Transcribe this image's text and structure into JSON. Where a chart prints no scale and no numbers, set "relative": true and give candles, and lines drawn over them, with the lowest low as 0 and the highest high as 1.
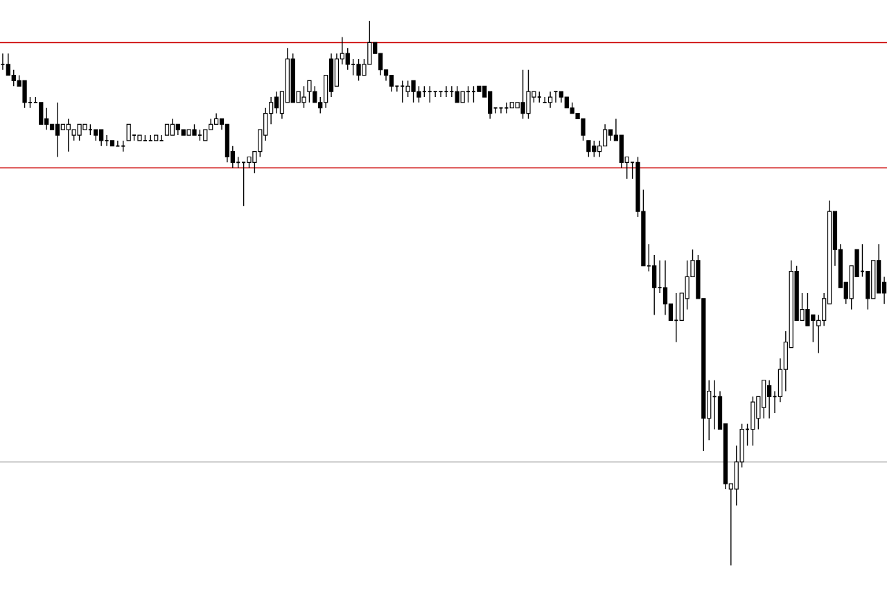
{
  "chart_data": {
    "type": "candlestick",
    "relative": true,
    "color": "#000000",
    "categories": [
      null,
      null,
      null,
      null,
      null,
      null,
      null,
      null,
      null,
      null,
      null,
      null,
      null,
      null,
      null,
      null,
      null,
      null,
      null,
      null,
      null,
      null,
      null,
      null,
      null,
      null,
      null,
      null,
      null,
      null,
      null,
      null,
      null,
      null,
      null,
      null,
      null,
      null,
      null,
      null,
      null,
      null,
      null,
      null,
      null,
      null,
      null,
      null,
      null,
      null,
      null,
      null,
      null,
      null,
      null,
      null,
      null,
      null,
      null,
      null,
      null,
      null,
      null,
      null,
      null,
      null,
      null,
      null,
      null,
      null,
      null,
      null,
      null,
      null,
      null,
      null,
      null,
      null,
      null,
      null,
      null,
      null,
      null,
      null,
      null,
      null,
      null,
      null,
      null,
      null,
      null,
      null,
      null,
      null,
      null,
      null,
      null,
      null,
      null,
      null,
      null,
      null,
      null,
      null,
      null,
      null,
      null,
      null,
      null,
      null,
      null,
      null,
      null,
      null,
      null,
      null,
      null,
      null,
      null,
      null,
      null,
      null,
      null,
      null,
      null,
      null,
      null,
      null,
      null,
      null,
      null,
      null,
      null,
      null,
      null,
      null,
      null,
      null,
      null,
      null,
      null,
      null,
      null,
      null,
      null,
      null,
      null,
      null,
      null,
      null,
      null,
      null,
      null,
      null,
      null,
      null,
      null,
      null,
      null,
      null,
      null,
      null
    ],
    "ohlc": [
      [
        0.92,
        0.94,
        0.91,
        0.92
      ],
      [
        0.92,
        0.94,
        0.9,
        0.9
      ],
      [
        0.9,
        0.91,
        0.88,
        0.89
      ],
      [
        0.89,
        0.9,
        0.88,
        0.88
      ],
      [
        0.89,
        0.89,
        0.84,
        0.85
      ],
      [
        0.85,
        0.86,
        0.84,
        0.85
      ],
      [
        0.85,
        0.86,
        0.85,
        0.85
      ],
      [
        0.85,
        0.85,
        0.81,
        0.81
      ],
      [
        0.82,
        0.84,
        0.8,
        0.81
      ],
      [
        0.81,
        0.81,
        0.8,
        0.8
      ],
      [
        0.81,
        0.85,
        0.75,
        0.79
      ],
      [
        0.8,
        0.81,
        0.8,
        0.81
      ],
      [
        0.8,
        0.82,
        0.76,
        0.81
      ],
      [
        0.79,
        0.8,
        0.78,
        0.8
      ],
      [
        0.79,
        0.81,
        0.78,
        0.81
      ],
      [
        0.8,
        0.81,
        0.8,
        0.81
      ],
      [
        0.8,
        0.81,
        0.79,
        0.8
      ],
      [
        0.8,
        0.8,
        0.78,
        0.79
      ],
      [
        0.8,
        0.8,
        0.77,
        0.78
      ],
      [
        0.78,
        0.79,
        0.77,
        0.78
      ],
      [
        0.78,
        0.78,
        0.77,
        0.77
      ],
      [
        0.77,
        0.78,
        0.77,
        0.77
      ],
      [
        0.77,
        0.78,
        0.76,
        0.77
      ],
      [
        0.78,
        0.81,
        0.78,
        0.81
      ],
      [
        0.79,
        0.79,
        0.78,
        0.79
      ],
      [
        0.78,
        0.79,
        0.78,
        0.79
      ],
      [
        0.78,
        0.79,
        0.78,
        0.78
      ],
      [
        0.78,
        0.79,
        0.78,
        0.78
      ],
      [
        0.78,
        0.79,
        0.78,
        0.79
      ],
      [
        0.78,
        0.79,
        0.78,
        0.78
      ],
      [
        0.79,
        0.81,
        0.79,
        0.81
      ],
      [
        0.79,
        0.82,
        0.79,
        0.81
      ],
      [
        0.81,
        0.81,
        0.79,
        0.8
      ],
      [
        0.8,
        0.8,
        0.79,
        0.79
      ],
      [
        0.79,
        0.8,
        0.79,
        0.8
      ],
      [
        0.8,
        0.81,
        0.79,
        0.79
      ],
      [
        0.79,
        0.8,
        0.78,
        0.79
      ],
      [
        0.78,
        0.8,
        0.78,
        0.8
      ],
      [
        0.8,
        0.82,
        0.8,
        0.81
      ],
      [
        0.81,
        0.83,
        0.81,
        0.82
      ],
      [
        0.82,
        0.82,
        0.8,
        0.81
      ],
      [
        0.81,
        0.81,
        0.74,
        0.75
      ],
      [
        0.76,
        0.77,
        0.73,
        0.74
      ],
      [
        0.74,
        0.75,
        0.73,
        0.74
      ],
      [
        0.74,
        0.74,
        0.66,
        0.74
      ],
      [
        0.74,
        0.75,
        0.73,
        0.75
      ],
      [
        0.74,
        0.76,
        0.72,
        0.76
      ],
      [
        0.76,
        0.8,
        0.75,
        0.8
      ],
      [
        0.79,
        0.84,
        0.78,
        0.83
      ],
      [
        0.83,
        0.86,
        0.81,
        0.85
      ],
      [
        0.86,
        0.87,
        0.83,
        0.84
      ],
      [
        0.83,
        0.87,
        0.82,
        0.87
      ],
      [
        0.85,
        0.95,
        0.85,
        0.93
      ],
      [
        0.93,
        0.94,
        0.85,
        0.85
      ],
      [
        0.85,
        0.87,
        0.85,
        0.87
      ],
      [
        0.85,
        0.88,
        0.84,
        0.86
      ],
      [
        0.87,
        0.89,
        0.85,
        0.89
      ],
      [
        0.87,
        0.88,
        0.85,
        0.85
      ],
      [
        0.85,
        0.86,
        0.83,
        0.84
      ],
      [
        0.85,
        0.9,
        0.84,
        0.9
      ],
      [
        0.93,
        0.94,
        0.86,
        0.87
      ],
      [
        0.88,
        0.94,
        0.88,
        0.93
      ],
      [
        0.93,
        0.97,
        0.92,
        0.94
      ],
      [
        0.94,
        0.95,
        0.91,
        0.92
      ],
      [
        0.92,
        0.93,
        0.9,
        0.92
      ],
      [
        0.92,
        0.93,
        0.89,
        0.9
      ],
      [
        0.9,
        0.93,
        0.9,
        0.92
      ],
      [
        0.92,
        1.0,
        0.92,
        0.96
      ],
      [
        0.96,
        0.96,
        0.94,
        0.94
      ],
      [
        0.94,
        0.94,
        0.9,
        0.91
      ],
      [
        0.91,
        0.91,
        0.89,
        0.9
      ],
      [
        0.9,
        0.9,
        0.87,
        0.88
      ],
      [
        0.88,
        0.88,
        0.87,
        0.88
      ],
      [
        0.88,
        0.89,
        0.85,
        0.88
      ],
      [
        0.87,
        0.89,
        0.86,
        0.88
      ],
      [
        0.89,
        0.89,
        0.85,
        0.87
      ],
      [
        0.87,
        0.88,
        0.85,
        0.86
      ],
      [
        0.87,
        0.88,
        0.86,
        0.87
      ],
      [
        0.87,
        0.88,
        0.85,
        0.87
      ],
      [
        0.87,
        0.87,
        0.86,
        0.87
      ],
      [
        0.87,
        0.87,
        0.86,
        0.87
      ],
      [
        0.87,
        0.88,
        0.86,
        0.87
      ],
      [
        0.87,
        0.88,
        0.86,
        0.87
      ],
      [
        0.87,
        0.88,
        0.85,
        0.85
      ],
      [
        0.85,
        0.87,
        0.85,
        0.87
      ],
      [
        0.87,
        0.88,
        0.85,
        0.87
      ],
      [
        0.87,
        0.88,
        0.85,
        0.87
      ],
      [
        0.88,
        0.88,
        0.87,
        0.87
      ],
      [
        0.88,
        0.88,
        0.86,
        0.86
      ],
      [
        0.87,
        0.87,
        0.82,
        0.83
      ],
      [
        0.84,
        0.84,
        0.83,
        0.84
      ],
      [
        0.84,
        0.84,
        0.83,
        0.84
      ],
      [
        0.84,
        0.85,
        0.83,
        0.84
      ],
      [
        0.84,
        0.85,
        0.84,
        0.85
      ],
      [
        0.84,
        0.85,
        0.84,
        0.85
      ],
      [
        0.85,
        0.91,
        0.82,
        0.83
      ],
      [
        0.83,
        0.91,
        0.82,
        0.87
      ],
      [
        0.86,
        0.87,
        0.85,
        0.87
      ],
      [
        0.86,
        0.87,
        0.85,
        0.86
      ],
      [
        0.85,
        0.86,
        0.85,
        0.85
      ],
      [
        0.85,
        0.87,
        0.84,
        0.86
      ],
      [
        0.87,
        0.87,
        0.85,
        0.87
      ],
      [
        0.87,
        0.87,
        0.85,
        0.86
      ],
      [
        0.86,
        0.86,
        0.84,
        0.84
      ],
      [
        0.84,
        0.85,
        0.83,
        0.83
      ],
      [
        0.83,
        0.83,
        0.82,
        0.82
      ],
      [
        0.82,
        0.82,
        0.78,
        0.79
      ],
      [
        0.78,
        0.78,
        0.75,
        0.76
      ],
      [
        0.77,
        0.78,
        0.75,
        0.76
      ],
      [
        0.76,
        0.78,
        0.75,
        0.77
      ],
      [
        0.77,
        0.81,
        0.77,
        0.8
      ],
      [
        0.8,
        0.8,
        0.78,
        0.79
      ],
      [
        0.79,
        0.82,
        0.78,
        0.78
      ],
      [
        0.79,
        0.79,
        0.73,
        0.74
      ],
      [
        0.74,
        0.75,
        0.71,
        0.75
      ],
      [
        0.74,
        0.74,
        0.71,
        0.74
      ],
      [
        0.74,
        0.75,
        0.64,
        0.65
      ],
      [
        0.65,
        0.69,
        0.55,
        0.55
      ],
      [
        0.55,
        0.59,
        0.54,
        0.55
      ],
      [
        0.55,
        0.57,
        0.46,
        0.51
      ],
      [
        0.51,
        0.56,
        0.5,
        0.51
      ],
      [
        0.51,
        0.56,
        0.46,
        0.48
      ],
      [
        0.48,
        0.48,
        0.45,
        0.45
      ],
      [
        0.45,
        0.5,
        0.41,
        0.45
      ],
      [
        0.45,
        0.5,
        0.45,
        0.5
      ],
      [
        0.49,
        0.56,
        0.47,
        0.53
      ],
      [
        0.53,
        0.58,
        0.53,
        0.56
      ],
      [
        0.56,
        0.57,
        0.49,
        0.49
      ],
      [
        0.49,
        0.49,
        0.21,
        0.27
      ],
      [
        0.27,
        0.34,
        0.23,
        0.32
      ],
      [
        0.31,
        0.34,
        0.25,
        0.31
      ],
      [
        0.31,
        0.32,
        0.25,
        0.25
      ],
      [
        0.26,
        0.26,
        0.14,
        0.15
      ],
      [
        0.14,
        0.15,
        0.0,
        0.15
      ],
      [
        0.14,
        0.22,
        0.11,
        0.19
      ],
      [
        0.19,
        0.26,
        0.18,
        0.25
      ],
      [
        0.25,
        0.26,
        0.22,
        0.25
      ],
      [
        0.25,
        0.31,
        0.22,
        0.3
      ],
      [
        0.27,
        0.31,
        0.25,
        0.31
      ],
      [
        0.29,
        0.34,
        0.27,
        0.34
      ],
      [
        0.33,
        0.34,
        0.27,
        0.31
      ],
      [
        0.31,
        0.32,
        0.28,
        0.31
      ],
      [
        0.31,
        0.38,
        0.3,
        0.36
      ],
      [
        0.36,
        0.43,
        0.32,
        0.41
      ],
      [
        0.4,
        0.56,
        0.4,
        0.54
      ],
      [
        0.54,
        0.55,
        0.45,
        0.45
      ],
      [
        0.45,
        0.5,
        0.45,
        0.47
      ],
      [
        0.47,
        0.5,
        0.44,
        0.44
      ],
      [
        0.46,
        0.46,
        0.41,
        0.45
      ],
      [
        0.44,
        0.46,
        0.39,
        0.45
      ],
      [
        0.45,
        0.5,
        0.44,
        0.49
      ],
      [
        0.48,
        0.67,
        0.48,
        0.65
      ],
      [
        0.65,
        0.65,
        0.55,
        0.58
      ],
      [
        0.58,
        0.59,
        0.51,
        0.51
      ],
      [
        0.52,
        0.52,
        0.48,
        0.49
      ],
      [
        0.49,
        0.55,
        0.47,
        0.55
      ],
      [
        0.58,
        0.58,
        0.53,
        0.53
      ],
      [
        0.54,
        0.59,
        0.53,
        0.54
      ],
      [
        0.54,
        0.54,
        0.47,
        0.49
      ],
      [
        0.49,
        0.56,
        0.49,
        0.56
      ],
      [
        0.56,
        0.59,
        0.5,
        0.5
      ],
      [
        0.52,
        0.53,
        0.48,
        0.5
      ]
    ],
    "ref_lines": [
      {
        "axis": "y",
        "value": 0.96,
        "color": "#cc0000"
      },
      {
        "axis": "y",
        "value": 0.73,
        "color": "#cc0000"
      },
      {
        "axis": "y",
        "value": 0.19,
        "color": "#c0c0c0"
      }
    ]
  }
}
